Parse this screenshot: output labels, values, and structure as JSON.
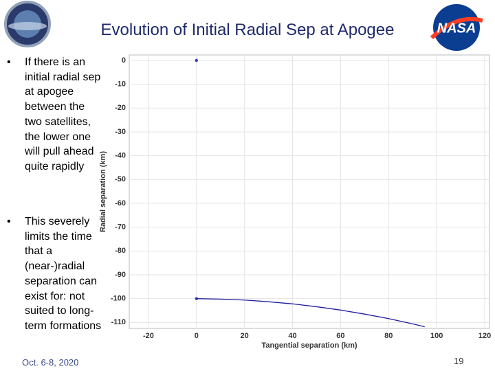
{
  "slide": {
    "title": "Evolution of Initial Radial Sep at Apogee",
    "bullets": [
      "If there is an initial radial sep at apogee between the two satellites, the lower one will pull ahead quite rapidly",
      "This severely limits the time that a (near-)radial separation can exist for: not suited to long-term formations"
    ],
    "footer": "Oct. 6-8, 2020",
    "page_number": "19"
  },
  "chart_data": {
    "type": "line",
    "xlabel": "Tangential separation (km)",
    "ylabel": "Radial separation (km)",
    "xlim": [
      -28,
      122
    ],
    "ylim": [
      -112.5,
      2.3
    ],
    "xticks": [
      -20,
      0,
      20,
      40,
      60,
      80,
      100,
      120
    ],
    "yticks": [
      0,
      -10,
      -20,
      -30,
      -40,
      -50,
      -60,
      -70,
      -80,
      -90,
      -100,
      -110
    ],
    "grid": true,
    "series": [
      {
        "style": "markers",
        "color": "#3a3ab8",
        "x": [
          0,
          0
        ],
        "values": [
          0,
          -100
        ]
      },
      {
        "style": "line",
        "color": "#1c1c9c",
        "x": [
          0,
          10,
          20,
          30,
          40,
          50,
          60,
          70,
          80,
          90,
          95
        ],
        "values": [
          -100,
          -100.2,
          -100.6,
          -101.3,
          -102.2,
          -103.4,
          -104.8,
          -106.5,
          -108.4,
          -110.6,
          -111.8
        ]
      }
    ]
  }
}
